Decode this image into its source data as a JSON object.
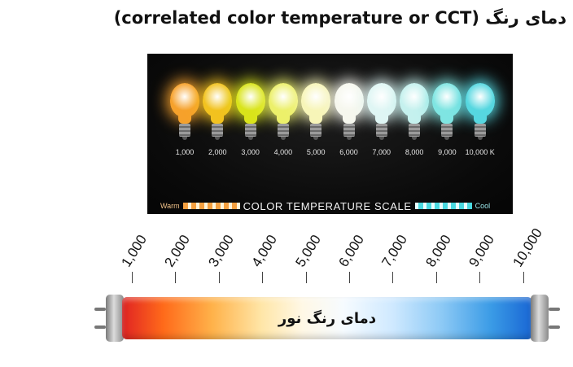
{
  "title": "(correlated color temperature or CCT) دمای رنگ",
  "photo": {
    "bulbs": [
      {
        "label": "1,000",
        "color": "#f6a12b"
      },
      {
        "label": "2,000",
        "color": "#f2c21f"
      },
      {
        "label": "3,000",
        "color": "#d9e41a"
      },
      {
        "label": "4,000",
        "color": "#ecf06a"
      },
      {
        "label": "5,000",
        "color": "#f7f5b8"
      },
      {
        "label": "6,000",
        "color": "#f6f7ee"
      },
      {
        "label": "7,000",
        "color": "#dff6f4"
      },
      {
        "label": "8,000",
        "color": "#c5f1ee"
      },
      {
        "label": "9,000",
        "color": "#7fe5e2"
      },
      {
        "label": "10,000 K",
        "color": "#56d7e0"
      }
    ],
    "scale": {
      "warm": "Warm",
      "text": "COLOR TEMPERATURE SCALE",
      "cool": "Cool"
    }
  },
  "ruler": {
    "ticks": [
      "1,000",
      "2,000",
      "3,000",
      "4,000",
      "5,000",
      "6,000",
      "7,000",
      "8,000",
      "9,000",
      "10,000"
    ]
  },
  "tube": {
    "label": "دمای رنگ نور"
  }
}
